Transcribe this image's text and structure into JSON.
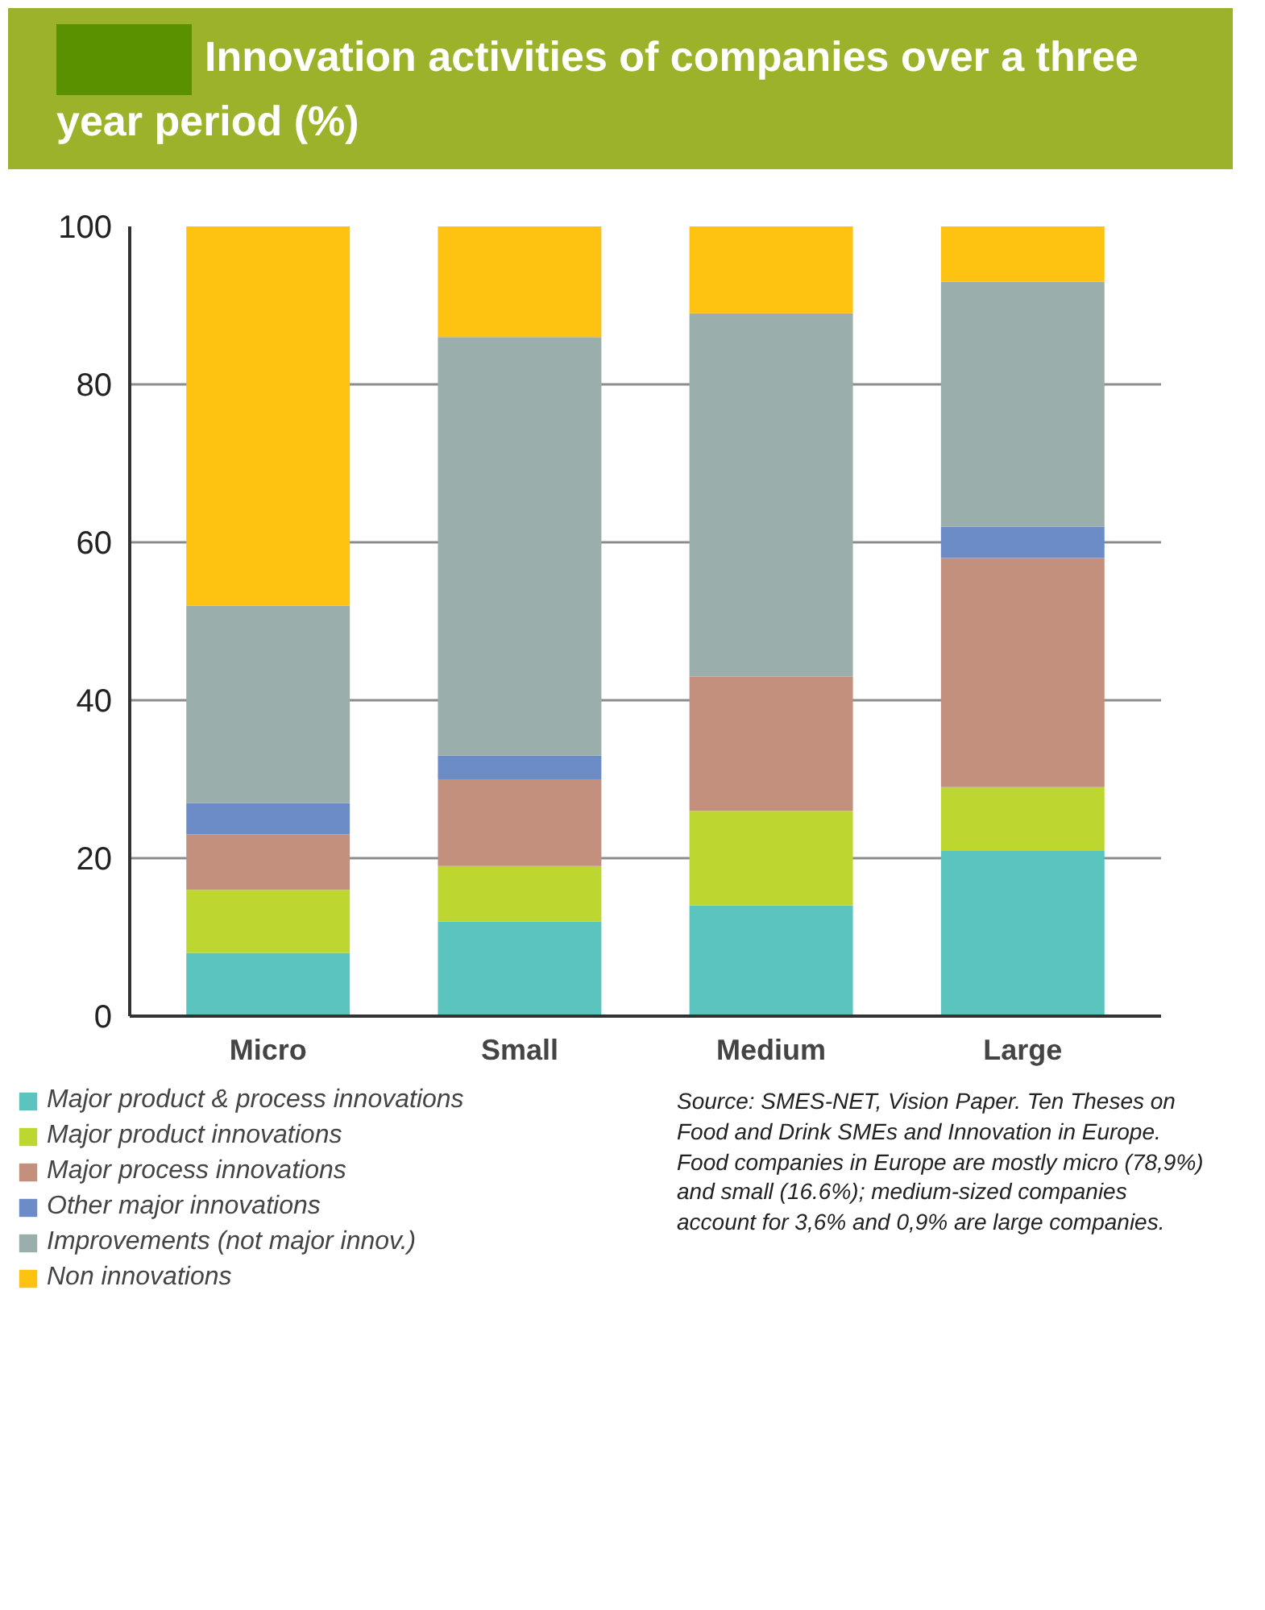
{
  "chart_data": {
    "type": "bar",
    "stacked": true,
    "title": "Innovation activities of companies over a three year period (%)",
    "categories": [
      "Micro",
      "Small",
      "Medium",
      "Large"
    ],
    "series": [
      {
        "name": "Major product & process innovations",
        "color": "#5bc4bf",
        "values": [
          8,
          12,
          14,
          21
        ]
      },
      {
        "name": "Major product innovations",
        "color": "#bed630",
        "values": [
          8,
          7,
          12,
          8
        ]
      },
      {
        "name": "Major process innovations",
        "color": "#c2907d",
        "values": [
          7,
          11,
          17,
          29
        ]
      },
      {
        "name": "Other major innovations",
        "color": "#6b8cc7",
        "values": [
          4,
          3,
          0,
          4
        ]
      },
      {
        "name": "Improvements (not major innov.)",
        "color": "#9aaeab",
        "values": [
          25,
          53,
          46,
          31
        ]
      },
      {
        "name": "Non innovations",
        "color": "#fec210",
        "values": [
          48,
          14,
          11,
          7
        ]
      }
    ],
    "ylim": [
      0,
      100
    ],
    "yticks": [
      0,
      20,
      40,
      60,
      80,
      100
    ],
    "grid": "y",
    "legend": "bottom",
    "annotations": [
      "Source: SMES-NET, Vision Paper. Ten Theses on Food and Drink SMEs and Innovation in Europe.  Food companies in Europe are mostly micro (78,9%) and small (16.6%); medium-sized companies account for 3,6% and 0,9% are large companies."
    ]
  }
}
